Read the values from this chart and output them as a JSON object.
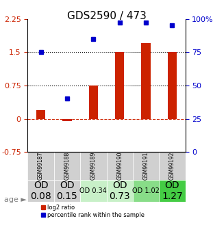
{
  "title": "GDS2590 / 473",
  "samples": [
    "GSM99187",
    "GSM99188",
    "GSM99189",
    "GSM99190",
    "GSM99191",
    "GSM99192"
  ],
  "log2_ratio": [
    0.2,
    -0.05,
    0.75,
    1.5,
    1.7,
    1.5
  ],
  "percentile_rank": [
    75,
    40,
    85,
    97,
    97,
    95
  ],
  "bar_color": "#cc2200",
  "dot_color": "#0000cc",
  "ylim_left": [
    -0.75,
    2.25
  ],
  "ylim_right": [
    0,
    100
  ],
  "hlines": [
    0.0,
    0.75,
    1.5
  ],
  "hline_styles": [
    "dashed",
    "dotted",
    "dotted"
  ],
  "hline_colors": [
    "#cc2200",
    "#000000",
    "#000000"
  ],
  "left_yticks": [
    -0.75,
    0,
    0.75,
    1.5,
    2.25
  ],
  "right_yticks": [
    0,
    25,
    50,
    75,
    100
  ],
  "right_yticklabels": [
    "0",
    "25",
    "50",
    "75",
    "100%"
  ],
  "age_labels": [
    "OD\n0.08",
    "OD\n0.15",
    "OD 0.34",
    "OD\n0.73",
    "OD 1.02",
    "OD\n1.27"
  ],
  "age_label_fontsize": [
    10,
    10,
    7,
    10,
    7,
    10
  ],
  "cell_colors": [
    "#d0d0d0",
    "#d0d0d0",
    "#c8f0c8",
    "#c8f0c8",
    "#88dd88",
    "#44cc44"
  ],
  "legend_log2": "log2 ratio",
  "legend_pct": "percentile rank within the sample",
  "background_color": "#ffffff"
}
